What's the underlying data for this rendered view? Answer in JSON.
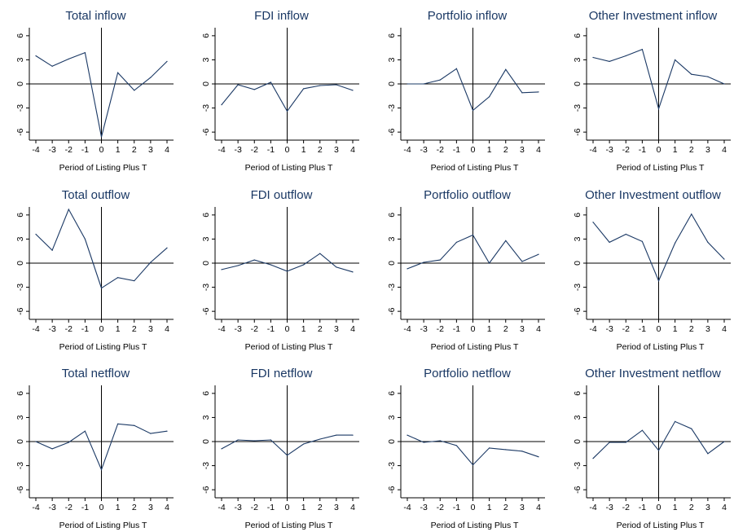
{
  "chart_data": [
    {
      "type": "line",
      "title": "Total inflow",
      "xlabel": "Period of Listing Plus T",
      "x": [
        -4,
        -3,
        -2,
        -1,
        0,
        1,
        2,
        3,
        4
      ],
      "values": [
        3.5,
        2.2,
        3.1,
        3.9,
        -6.6,
        1.4,
        -0.8,
        0.8,
        2.8
      ],
      "ylim": [
        -7,
        7
      ],
      "yticks": [
        "6",
        "3",
        "0",
        "-3",
        "-6"
      ],
      "xticks": [
        "-4",
        "-3",
        "-2",
        "-1",
        "0",
        "1",
        "2",
        "3",
        "4"
      ]
    },
    {
      "type": "line",
      "title": "FDI inflow",
      "xlabel": "Period of Listing Plus T",
      "x": [
        -4,
        -3,
        -2,
        -1,
        0,
        1,
        2,
        3,
        4
      ],
      "values": [
        -2.6,
        -0.1,
        -0.7,
        0.2,
        -3.4,
        -0.6,
        -0.2,
        -0.1,
        -0.8
      ],
      "ylim": [
        -7,
        7
      ],
      "yticks": [
        "6",
        "3",
        "0",
        "-3",
        "-6"
      ],
      "xticks": [
        "-4",
        "-3",
        "-2",
        "-1",
        "0",
        "1",
        "2",
        "3",
        "4"
      ]
    },
    {
      "type": "line",
      "title": "Portfolio inflow",
      "xlabel": "Period of Listing Plus T",
      "x": [
        -4,
        -3,
        -2,
        -1,
        0,
        1,
        2,
        3,
        4
      ],
      "values": [
        0,
        0,
        0.5,
        1.9,
        -3.3,
        -1.6,
        1.8,
        -1.1,
        -1
      ],
      "ylim": [
        -7,
        7
      ],
      "yticks": [
        "6",
        "3",
        "0",
        "-3",
        "-6"
      ],
      "xticks": [
        "-4",
        "-3",
        "-2",
        "-1",
        "0",
        "1",
        "2",
        "3",
        "4"
      ]
    },
    {
      "type": "line",
      "title": "Other Investment inflow",
      "xlabel": "Period of Listing Plus T",
      "x": [
        -4,
        -3,
        -2,
        -1,
        0,
        1,
        2,
        3,
        4
      ],
      "values": [
        3.3,
        2.8,
        3.5,
        4.3,
        -3.1,
        3,
        1.2,
        0.9,
        0
      ],
      "ylim": [
        -7,
        7
      ],
      "yticks": [
        "6",
        "3",
        "0",
        "-3",
        "-6"
      ],
      "xticks": [
        "-4",
        "-3",
        "-2",
        "-1",
        "0",
        "1",
        "2",
        "3",
        "4"
      ]
    },
    {
      "type": "line",
      "title": "Total outflow",
      "xlabel": "Period of Listing Plus T",
      "x": [
        -4,
        -3,
        -2,
        -1,
        0,
        1,
        2,
        3,
        4
      ],
      "values": [
        3.6,
        1.6,
        6.7,
        3,
        -3.1,
        -1.8,
        -2.2,
        0.1,
        1.9
      ],
      "ylim": [
        -7,
        7
      ],
      "yticks": [
        "6",
        "3",
        "0",
        "-3",
        "-6"
      ],
      "xticks": [
        "-4",
        "-3",
        "-2",
        "-1",
        "0",
        "1",
        "2",
        "3",
        "4"
      ]
    },
    {
      "type": "line",
      "title": "FDI outflow",
      "xlabel": "Period of Listing Plus T",
      "x": [
        -4,
        -3,
        -2,
        -1,
        0,
        1,
        2,
        3,
        4
      ],
      "values": [
        -0.8,
        -0.3,
        0.4,
        -0.2,
        -1,
        -0.2,
        1.2,
        -0.5,
        -1.1
      ],
      "ylim": [
        -7,
        7
      ],
      "yticks": [
        "6",
        "3",
        "0",
        "-3",
        "-6"
      ],
      "xticks": [
        "-4",
        "-3",
        "-2",
        "-1",
        "0",
        "1",
        "2",
        "3",
        "4"
      ]
    },
    {
      "type": "line",
      "title": "Portfolio outflow",
      "xlabel": "Period of Listing Plus T",
      "x": [
        -4,
        -3,
        -2,
        -1,
        0,
        1,
        2,
        3,
        4
      ],
      "values": [
        -0.7,
        0.1,
        0.4,
        2.6,
        3.5,
        0,
        2.8,
        0.2,
        1.1
      ],
      "ylim": [
        -7,
        7
      ],
      "yticks": [
        "6",
        "3",
        "0",
        "-3",
        "-6"
      ],
      "xticks": [
        "-4",
        "-3",
        "-2",
        "-1",
        "0",
        "1",
        "2",
        "3",
        "4"
      ]
    },
    {
      "type": "line",
      "title": "Other Investment outflow",
      "xlabel": "Period of Listing Plus T",
      "x": [
        -4,
        -3,
        -2,
        -1,
        0,
        1,
        2,
        3,
        4
      ],
      "values": [
        5.1,
        2.6,
        3.6,
        2.7,
        -2.2,
        2.5,
        6.1,
        2.6,
        0.5
      ],
      "ylim": [
        -7,
        7
      ],
      "yticks": [
        "6",
        "3",
        "0",
        "-3",
        "-6"
      ],
      "xticks": [
        "-4",
        "-3",
        "-2",
        "-1",
        "0",
        "1",
        "2",
        "3",
        "4"
      ]
    },
    {
      "type": "line",
      "title": "Total netflow",
      "xlabel": "Period of Listing Plus T",
      "x": [
        -4,
        -3,
        -2,
        -1,
        0,
        1,
        2,
        3,
        4
      ],
      "values": [
        0,
        -0.9,
        -0.1,
        1.3,
        -3.5,
        2.2,
        2,
        1,
        1.3
      ],
      "ylim": [
        -7,
        7
      ],
      "yticks": [
        "6",
        "3",
        "0",
        "-3",
        "-6"
      ],
      "xticks": [
        "-4",
        "-3",
        "-2",
        "-1",
        "0",
        "1",
        "2",
        "3",
        "4"
      ]
    },
    {
      "type": "line",
      "title": "FDI netflow",
      "xlabel": "Period of Listing Plus T",
      "x": [
        -4,
        -3,
        -2,
        -1,
        0,
        1,
        2,
        3,
        4
      ],
      "values": [
        -0.9,
        0.2,
        0.1,
        0.2,
        -1.7,
        -0.3,
        0.3,
        0.8,
        0.8
      ],
      "ylim": [
        -7,
        7
      ],
      "yticks": [
        "6",
        "3",
        "0",
        "-3",
        "-6"
      ],
      "xticks": [
        "-4",
        "-3",
        "-2",
        "-1",
        "0",
        "1",
        "2",
        "3",
        "4"
      ]
    },
    {
      "type": "line",
      "title": "Portfolio netflow",
      "xlabel": "Period of Listing Plus T",
      "x": [
        -4,
        -3,
        -2,
        -1,
        0,
        1,
        2,
        3,
        4
      ],
      "values": [
        0.8,
        -0.1,
        0.1,
        -0.5,
        -2.9,
        -0.8,
        -1,
        -1.2,
        -1.9
      ],
      "ylim": [
        -7,
        7
      ],
      "yticks": [
        "6",
        "3",
        "0",
        "-3",
        "-6"
      ],
      "xticks": [
        "-4",
        "-3",
        "-2",
        "-1",
        "0",
        "1",
        "2",
        "3",
        "4"
      ]
    },
    {
      "type": "line",
      "title": "Other Investment netflow",
      "xlabel": "Period of Listing Plus T",
      "x": [
        -4,
        -3,
        -2,
        -1,
        0,
        1,
        2,
        3,
        4
      ],
      "values": [
        -2.1,
        -0.1,
        -0.1,
        1.4,
        -1.1,
        2.5,
        1.6,
        -1.5,
        0
      ],
      "ylim": [
        -7,
        7
      ],
      "yticks": [
        "6",
        "3",
        "0",
        "-3",
        "-6"
      ],
      "xticks": [
        "-4",
        "-3",
        "-2",
        "-1",
        "0",
        "1",
        "2",
        "3",
        "4"
      ]
    }
  ],
  "colors": {
    "line": "#1a3864",
    "title": "#1a3864",
    "axis": "#000000"
  }
}
